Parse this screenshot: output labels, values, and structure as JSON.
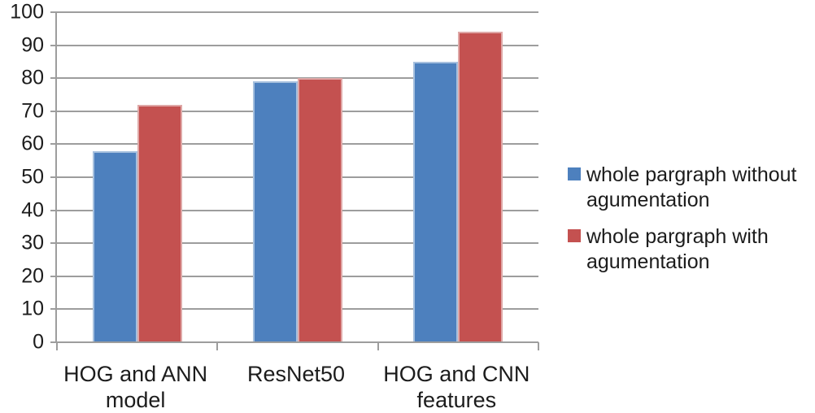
{
  "chart_data": {
    "type": "bar",
    "title": "",
    "xlabel": "",
    "ylabel": "",
    "categories": [
      "HOG and ANN model",
      "ResNet50",
      "HOG and CNN features"
    ],
    "series": [
      {
        "name": "whole pargraph without agumentation",
        "color": "#4d80be",
        "border_color": "#a6c0de",
        "values": [
          58,
          79,
          85
        ]
      },
      {
        "name": "whole pargraph with agumentation",
        "color": "#c45150",
        "border_color": "#dfa8a7",
        "values": [
          72,
          80,
          94
        ]
      }
    ],
    "ylim": [
      0,
      100
    ],
    "yticks": [
      0,
      10,
      20,
      30,
      40,
      50,
      60,
      70,
      80,
      90,
      100
    ],
    "grid": true,
    "legend_position": "right"
  },
  "colors": {
    "gridline": "#9d9d9d",
    "axis": "#9d9d9d",
    "text": "#1c1c1c",
    "background": "#ffffff"
  }
}
